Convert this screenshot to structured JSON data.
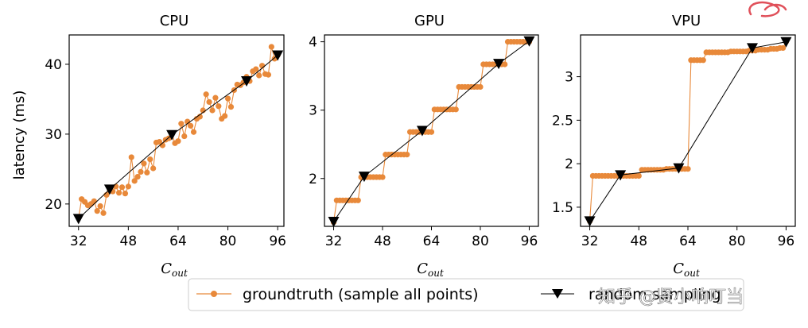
{
  "chart_data": [
    {
      "type": "line",
      "title": "CPU",
      "xlabel": "C",
      "xlabel_sub": "out",
      "ylabel": "latency (ms)",
      "xlim": [
        29,
        98
      ],
      "ylim": [
        16.8,
        44.2
      ],
      "xticks": [
        32,
        48,
        64,
        80,
        96
      ],
      "yticks": [
        20,
        30,
        40
      ],
      "series": [
        {
          "name": "groundtruth (sample all points)",
          "x": [
            32,
            33,
            34,
            35,
            36,
            37,
            38,
            39,
            40,
            41,
            42,
            43,
            44,
            45,
            46,
            47,
            48,
            49,
            50,
            51,
            52,
            53,
            54,
            55,
            56,
            57,
            58,
            59,
            60,
            61,
            62,
            63,
            64,
            65,
            66,
            67,
            68,
            69,
            70,
            71,
            72,
            73,
            74,
            75,
            76,
            77,
            78,
            79,
            80,
            81,
            82,
            83,
            84,
            85,
            86,
            87,
            88,
            89,
            90,
            91,
            92,
            93,
            94,
            95,
            96
          ],
          "y": [
            18.0,
            20.7,
            20.3,
            19.8,
            20.0,
            20.4,
            19.0,
            19.7,
            18.7,
            21.3,
            22.0,
            21.8,
            22.5,
            21.6,
            22.4,
            21.5,
            22.5,
            26.7,
            23.3,
            23.9,
            24.6,
            25.8,
            24.5,
            26.4,
            25.1,
            28.8,
            28.9,
            28.4,
            29.2,
            29.4,
            30.0,
            28.7,
            29.0,
            31.5,
            29.7,
            31.8,
            31.2,
            30.3,
            32.2,
            32.5,
            33.4,
            35.7,
            34.6,
            33.4,
            35.2,
            34.0,
            32.2,
            32.6,
            35.1,
            33.9,
            36.3,
            37.1,
            37.0,
            37.4,
            38.2,
            37.6,
            39.0,
            39.3,
            38.4,
            39.8,
            38.6,
            38.5,
            42.5,
            40.8,
            41.3
          ]
        },
        {
          "name": "random sampling",
          "x": [
            32,
            42,
            62,
            86,
            96
          ],
          "y": [
            17.9,
            22.1,
            29.9,
            37.6,
            41.3
          ]
        }
      ]
    },
    {
      "type": "line",
      "title": "GPU",
      "xlabel": "C",
      "xlabel_sub": "out",
      "ylabel": "",
      "xlim": [
        29,
        99
      ],
      "ylim": [
        1.3,
        4.1
      ],
      "xticks": [
        32,
        48,
        64,
        80,
        96
      ],
      "yticks": [
        2,
        3,
        4
      ],
      "series": [
        {
          "name": "groundtruth (sample all points)",
          "x": [
            32,
            33,
            34,
            35,
            36,
            37,
            38,
            39,
            40,
            41,
            42,
            43,
            44,
            45,
            46,
            47,
            48,
            49,
            50,
            51,
            52,
            53,
            54,
            55,
            56,
            57,
            58,
            59,
            60,
            61,
            62,
            63,
            64,
            65,
            66,
            67,
            68,
            69,
            70,
            71,
            72,
            73,
            74,
            75,
            76,
            77,
            78,
            79,
            80,
            81,
            82,
            83,
            84,
            85,
            86,
            87,
            88,
            89,
            90,
            91,
            92,
            93,
            94,
            95,
            96
          ],
          "y": [
            1.36,
            1.68,
            1.68,
            1.68,
            1.68,
            1.68,
            1.68,
            1.68,
            1.68,
            2.02,
            2.02,
            2.02,
            2.02,
            2.02,
            2.02,
            2.02,
            2.02,
            2.35,
            2.35,
            2.35,
            2.35,
            2.35,
            2.35,
            2.35,
            2.35,
            2.68,
            2.68,
            2.68,
            2.68,
            2.68,
            2.68,
            2.68,
            2.68,
            3.01,
            3.01,
            3.01,
            3.01,
            3.01,
            3.01,
            3.01,
            3.01,
            3.34,
            3.34,
            3.34,
            3.34,
            3.34,
            3.34,
            3.34,
            3.34,
            3.67,
            3.67,
            3.67,
            3.67,
            3.67,
            3.67,
            3.67,
            3.67,
            4.0,
            4.0,
            4.0,
            4.0,
            4.0,
            4.0,
            4.0,
            4.0
          ]
        },
        {
          "name": "random sampling",
          "x": [
            32,
            42,
            61,
            86,
            96
          ],
          "y": [
            1.37,
            2.03,
            2.7,
            3.68,
            4.01
          ]
        }
      ]
    },
    {
      "type": "line",
      "title": "VPU",
      "xlabel": "C",
      "xlabel_sub": "out",
      "ylabel": "",
      "xlim": [
        29,
        99
      ],
      "ylim": [
        1.28,
        3.48
      ],
      "xticks": [
        32,
        48,
        64,
        80,
        96
      ],
      "yticks": [
        1.5,
        2.0,
        2.5,
        3.0
      ],
      "series": [
        {
          "name": "groundtruth (sample all points)",
          "x": [
            32,
            33,
            34,
            35,
            36,
            37,
            38,
            39,
            40,
            41,
            42,
            43,
            44,
            45,
            46,
            47,
            48,
            49,
            50,
            51,
            52,
            53,
            54,
            55,
            56,
            57,
            58,
            59,
            60,
            61,
            62,
            63,
            64,
            65,
            66,
            67,
            68,
            69,
            70,
            71,
            72,
            73,
            74,
            75,
            76,
            77,
            78,
            79,
            80,
            81,
            82,
            83,
            84,
            85,
            86,
            87,
            88,
            89,
            90,
            91,
            92,
            93,
            94,
            95,
            96
          ],
          "y": [
            1.34,
            1.86,
            1.86,
            1.86,
            1.86,
            1.86,
            1.86,
            1.86,
            1.86,
            1.86,
            1.86,
            1.86,
            1.86,
            1.86,
            1.86,
            1.86,
            1.86,
            1.93,
            1.93,
            1.93,
            1.93,
            1.93,
            1.93,
            1.93,
            1.93,
            1.94,
            1.94,
            1.94,
            1.94,
            1.94,
            1.94,
            1.94,
            1.94,
            3.19,
            3.19,
            3.19,
            3.19,
            3.19,
            3.28,
            3.28,
            3.28,
            3.28,
            3.28,
            3.28,
            3.28,
            3.28,
            3.29,
            3.29,
            3.29,
            3.29,
            3.29,
            3.29,
            3.3,
            3.3,
            3.3,
            3.31,
            3.31,
            3.31,
            3.31,
            3.32,
            3.32,
            3.32,
            3.33,
            3.33,
            3.4
          ]
        },
        {
          "name": "random sampling",
          "x": [
            32,
            42,
            61,
            85,
            96
          ],
          "y": [
            1.34,
            1.87,
            1.95,
            3.33,
            3.4
          ]
        }
      ]
    }
  ],
  "legend": {
    "groundtruth_label": "groundtruth (sample all points)",
    "sampling_label": "random sampling",
    "placement": "bottom-center"
  },
  "watermark": {
    "text": "知乎 @贤小响叮当"
  },
  "colors": {
    "groundtruth": "#e8893a",
    "sampling": "#000000",
    "axes": "#000000"
  }
}
